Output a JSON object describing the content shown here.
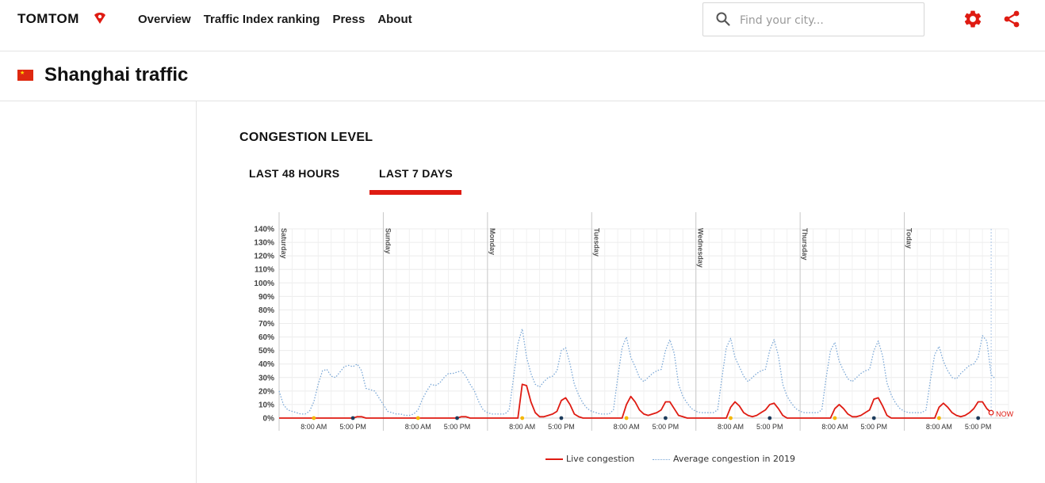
{
  "header": {
    "logo_text": "TOMTOM",
    "nav": [
      "Overview",
      "Traffic Index ranking",
      "Press",
      "About"
    ],
    "search_placeholder": "Find your city...",
    "accent": "#df1b12"
  },
  "page": {
    "title": "Shanghai traffic",
    "section_title": "CONGESTION LEVEL",
    "tabs": [
      {
        "label": "LAST 48 HOURS",
        "active": false
      },
      {
        "label": "LAST 7 DAYS",
        "active": true
      }
    ]
  },
  "chart_data": {
    "type": "line",
    "y_ticks": [
      "0%",
      "10%",
      "20%",
      "30%",
      "40%",
      "50%",
      "60%",
      "70%",
      "80%",
      "90%",
      "100%",
      "110%",
      "120%",
      "130%",
      "140%"
    ],
    "ylim": [
      0,
      140
    ],
    "grid": true,
    "days": [
      "Saturday",
      "Sunday",
      "Monday",
      "Tuesday",
      "Wednesday",
      "Thursday",
      "Today"
    ],
    "x_tick_labels": [
      "8:00 AM",
      "5:00 PM"
    ],
    "now_label": "NOW",
    "legend_position": "bottom",
    "series": [
      {
        "name": "Live congestion",
        "color": "#df1b12",
        "style": "solid",
        "values": [
          0,
          0,
          0,
          0,
          0,
          0,
          0,
          0,
          0,
          0,
          0,
          0,
          0,
          0,
          0,
          0,
          0,
          0,
          1,
          1,
          0,
          0,
          0,
          0,
          0,
          0,
          0,
          0,
          0,
          0,
          0,
          0,
          0,
          0,
          0,
          0,
          0,
          0,
          0,
          0,
          0,
          0,
          1,
          1,
          0,
          0,
          0,
          0,
          0,
          0,
          0,
          0,
          0,
          0,
          0,
          0,
          25,
          24,
          12,
          4,
          1,
          1,
          2,
          3,
          5,
          13,
          15,
          10,
          3,
          1,
          0,
          0,
          0,
          0,
          0,
          0,
          0,
          0,
          0,
          0,
          10,
          16,
          12,
          6,
          3,
          2,
          3,
          4,
          6,
          12,
          12,
          7,
          2,
          1,
          0,
          0,
          0,
          0,
          0,
          0,
          0,
          0,
          0,
          0,
          8,
          12,
          9,
          4,
          2,
          1,
          2,
          4,
          6,
          10,
          11,
          7,
          2,
          0,
          0,
          0,
          0,
          0,
          0,
          0,
          0,
          0,
          0,
          0,
          7,
          10,
          7,
          3,
          1,
          1,
          2,
          4,
          6,
          14,
          15,
          9,
          2,
          0,
          0,
          0,
          0,
          0,
          0,
          0,
          0,
          0,
          0,
          0,
          8,
          11,
          8,
          4,
          2,
          1,
          2,
          4,
          7,
          12,
          12,
          7,
          4
        ]
      },
      {
        "name": "Average congestion in 2019",
        "color": "#7aa7d6",
        "style": "dotted",
        "values": [
          20,
          10,
          6,
          5,
          4,
          3,
          3,
          5,
          12,
          25,
          35,
          36,
          31,
          30,
          34,
          38,
          39,
          38,
          40,
          35,
          22,
          21,
          20,
          15,
          10,
          5,
          4,
          3,
          3,
          2,
          2,
          3,
          6,
          14,
          20,
          25,
          24,
          26,
          30,
          33,
          33,
          34,
          35,
          31,
          25,
          20,
          12,
          6,
          4,
          3,
          3,
          3,
          3,
          6,
          30,
          55,
          66,
          45,
          33,
          25,
          23,
          27,
          30,
          31,
          35,
          50,
          52,
          40,
          25,
          17,
          11,
          7,
          5,
          4,
          3,
          3,
          3,
          6,
          30,
          52,
          60,
          45,
          38,
          30,
          27,
          30,
          33,
          35,
          36,
          50,
          58,
          48,
          25,
          16,
          11,
          7,
          5,
          4,
          4,
          4,
          4,
          6,
          30,
          52,
          59,
          45,
          38,
          31,
          27,
          30,
          33,
          35,
          36,
          50,
          58,
          46,
          25,
          16,
          11,
          7,
          5,
          4,
          4,
          4,
          4,
          6,
          30,
          50,
          56,
          42,
          35,
          29,
          27,
          30,
          33,
          35,
          36,
          50,
          57,
          46,
          26,
          17,
          11,
          7,
          5,
          4,
          4,
          4,
          4,
          6,
          28,
          47,
          53,
          42,
          35,
          30,
          29,
          33,
          36,
          39,
          40,
          45,
          61,
          57,
          32,
          29
        ]
      }
    ]
  },
  "legend": {
    "live": "Live congestion",
    "avg": "Average congestion in 2019"
  }
}
